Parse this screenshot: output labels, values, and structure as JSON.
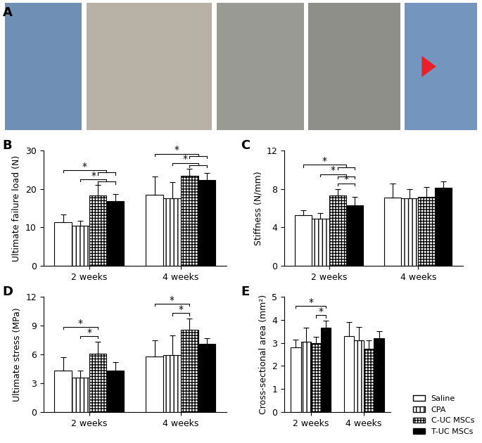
{
  "photo_panel": {
    "label": "A"
  },
  "chart_data": [
    {
      "type": "bar",
      "panel": "B",
      "y_label": "Ultimate failure load (N)",
      "categories": [
        "2 weeks",
        "4 weeks"
      ],
      "ylim": [
        0,
        30
      ],
      "yticks": [
        0,
        10,
        20,
        30
      ],
      "series": [
        {
          "name": "Saline",
          "color": "#ffffff",
          "values": [
            11.3,
            18.5
          ],
          "errors": [
            2.0,
            4.8
          ]
        },
        {
          "name": "CPA",
          "color": "#ffffff",
          "values": [
            10.5,
            17.5
          ],
          "errors": [
            1.2,
            4.3
          ]
        },
        {
          "name": "C-UC MSCs",
          "color": "#ffffff",
          "values": [
            18.3,
            23.5
          ],
          "errors": [
            2.7,
            1.8
          ]
        },
        {
          "name": "T-UC MSCs",
          "color": "#000000",
          "values": [
            16.8,
            22.3
          ],
          "errors": [
            1.8,
            1.8
          ]
        }
      ],
      "annotations": [
        {
          "text": "*",
          "category": "2 weeks",
          "from": "CPA",
          "to": [
            "C-UC MSCs",
            "T-UC MSCs"
          ]
        },
        {
          "text": "*",
          "category": "2 weeks",
          "from": "Saline",
          "to": [
            "C-UC MSCs",
            "T-UC MSCs"
          ]
        },
        {
          "text": "*",
          "category": "4 weeks",
          "from": "CPA",
          "to": [
            "C-UC MSCs",
            "T-UC MSCs"
          ]
        },
        {
          "text": "*",
          "category": "4 weeks",
          "from": "Saline",
          "to": [
            "C-UC MSCs",
            "T-UC MSCs"
          ]
        }
      ]
    },
    {
      "type": "bar",
      "panel": "C",
      "y_label": "Stiffness (N/mm)",
      "categories": [
        "2 weeks",
        "4 weeks"
      ],
      "ylim": [
        0,
        12
      ],
      "yticks": [
        0,
        4,
        8,
        12
      ],
      "series": [
        {
          "name": "Saline",
          "color": "#ffffff",
          "values": [
            5.3,
            7.1
          ],
          "errors": [
            0.5,
            1.5
          ]
        },
        {
          "name": "CPA",
          "color": "#ffffff",
          "values": [
            4.9,
            7.0
          ],
          "errors": [
            0.6,
            1.0
          ]
        },
        {
          "name": "C-UC MSCs",
          "color": "#ffffff",
          "values": [
            7.3,
            7.2
          ],
          "errors": [
            0.7,
            1.0
          ]
        },
        {
          "name": "T-UC MSCs",
          "color": "#000000",
          "values": [
            6.3,
            8.1
          ],
          "errors": [
            0.9,
            0.7
          ]
        }
      ],
      "annotations": [
        {
          "text": "*",
          "category": "2 weeks",
          "from": "C-UC MSCs",
          "to": [
            "T-UC MSCs"
          ]
        },
        {
          "text": "*",
          "category": "2 weeks",
          "from": "CPA",
          "to": [
            "C-UC MSCs",
            "T-UC MSCs"
          ]
        },
        {
          "text": "*",
          "category": "2 weeks",
          "from": "Saline",
          "to": [
            "C-UC MSCs",
            "T-UC MSCs"
          ]
        }
      ]
    },
    {
      "type": "bar",
      "panel": "D",
      "y_label": "Ultimate stress (MPa)",
      "categories": [
        "2 weeks",
        "4 weeks"
      ],
      "ylim": [
        0,
        12
      ],
      "yticks": [
        0,
        3,
        6,
        9,
        12
      ],
      "series": [
        {
          "name": "Saline",
          "color": "#ffffff",
          "values": [
            4.3,
            5.8
          ],
          "errors": [
            1.4,
            1.7
          ]
        },
        {
          "name": "CPA",
          "color": "#ffffff",
          "values": [
            3.6,
            5.9
          ],
          "errors": [
            0.7,
            2.1
          ]
        },
        {
          "name": "C-UC MSCs",
          "color": "#ffffff",
          "values": [
            6.1,
            8.6
          ],
          "errors": [
            1.2,
            1.1
          ]
        },
        {
          "name": "T-UC MSCs",
          "color": "#000000",
          "values": [
            4.3,
            7.1
          ],
          "errors": [
            0.9,
            0.6
          ]
        }
      ],
      "annotations": [
        {
          "text": "*",
          "category": "2 weeks",
          "from": "CPA",
          "to": [
            "C-UC MSCs"
          ]
        },
        {
          "text": "*",
          "category": "2 weeks",
          "from": "Saline",
          "to": [
            "C-UC MSCs"
          ]
        },
        {
          "text": "*",
          "category": "4 weeks",
          "from": "CPA",
          "to": [
            "C-UC MSCs"
          ]
        },
        {
          "text": "*",
          "category": "4 weeks",
          "from": "Saline",
          "to": [
            "C-UC MSCs"
          ]
        }
      ]
    },
    {
      "type": "bar",
      "panel": "E",
      "y_label": "Cross-sectional area (mm²)",
      "categories": [
        "2 weeks",
        "4 weeks"
      ],
      "ylim": [
        0,
        5
      ],
      "yticks": [
        0,
        1,
        2,
        3,
        4,
        5
      ],
      "legend": "lower right",
      "series": [
        {
          "name": "Saline",
          "color": "#ffffff",
          "values": [
            2.8,
            3.3
          ],
          "errors": [
            0.35,
            0.6
          ]
        },
        {
          "name": "CPA",
          "color": "#ffffff",
          "values": [
            3.05,
            3.1
          ],
          "errors": [
            0.6,
            0.6
          ]
        },
        {
          "name": "C-UC MSCs",
          "color": "#ffffff",
          "values": [
            3.0,
            2.75
          ],
          "errors": [
            0.25,
            0.35
          ]
        },
        {
          "name": "T-UC MSCs",
          "color": "#000000",
          "values": [
            3.65,
            3.2
          ],
          "errors": [
            0.3,
            0.3
          ]
        }
      ],
      "annotations": [
        {
          "text": "*",
          "category": "2 weeks",
          "from": "C-UC MSCs",
          "to": [
            "T-UC MSCs"
          ]
        },
        {
          "text": "*",
          "category": "2 weeks",
          "from": "Saline",
          "to": [
            "T-UC MSCs"
          ]
        }
      ]
    }
  ]
}
